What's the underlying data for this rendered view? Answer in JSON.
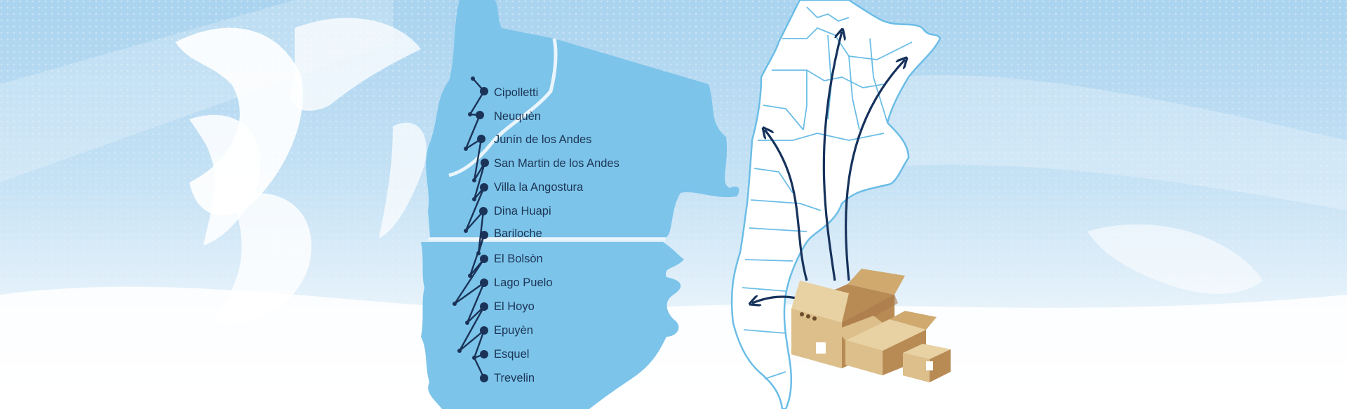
{
  "map": {
    "route": {
      "cities": [
        "Cipolletti",
        "Neuquèn",
        "Junín de los Andes",
        "San Martin de los Andes",
        "Villa la Angostura",
        "Dina Huapi",
        "Bariloche",
        "El Bolsòn",
        "Lago Puelo",
        "El Hoyo",
        "Epuyèn",
        "Esquel",
        "Trevelin"
      ],
      "line_color": "#1b3358",
      "region_color": "#7cc4ea"
    },
    "country_outline_color": "#6bbde6",
    "arrow_color": "#16325c",
    "shipment": {
      "icon": "cardboard-boxes-icon",
      "box_color": "#c9a46b"
    }
  }
}
